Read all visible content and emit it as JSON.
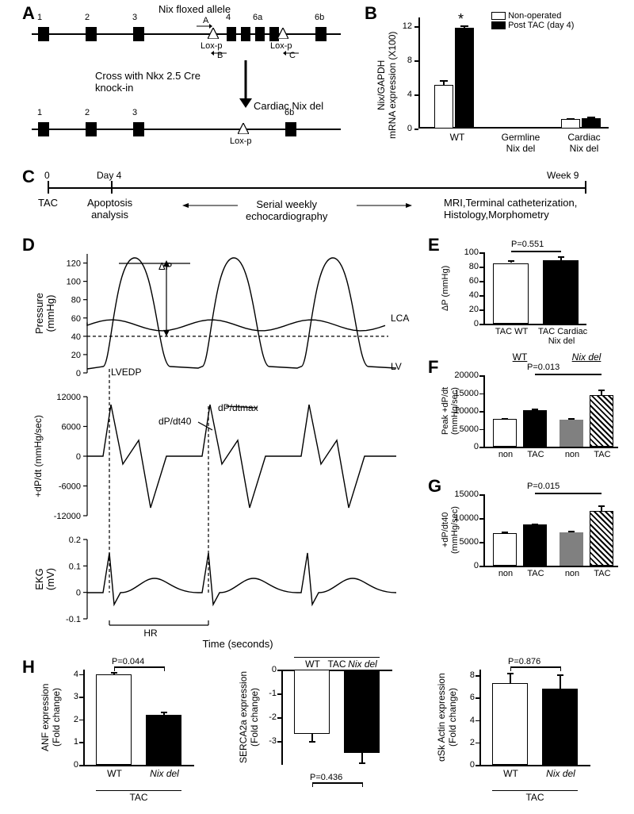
{
  "panelLabels": {
    "A": "A",
    "B": "B",
    "C": "C",
    "D": "D",
    "E": "E",
    "F": "F",
    "G": "G",
    "H": "H"
  },
  "panelA": {
    "title": "Nix floxed allele",
    "exons_top": [
      "1",
      "2",
      "3",
      "4",
      "6a",
      "6b"
    ],
    "loxp": "Lox-p",
    "primers": [
      "A",
      "B",
      "C"
    ],
    "cross_text": "Cross with Nkx 2.5 Cre\nknock-in",
    "bottom_title": "Cardiac Nix del",
    "exons_bottom": [
      "1",
      "2",
      "3",
      "6b"
    ]
  },
  "panelB": {
    "ylabel": "Nix/GAPDH\nmRNA expression (X100)",
    "yticks": [
      0,
      4,
      8,
      12
    ],
    "legend": [
      "Non-operated",
      "Post TAC (day 4)"
    ],
    "groups": [
      "WT",
      "Germline\nNix del",
      "Cardiac\nNix del"
    ],
    "values_non": [
      5.1,
      0.1,
      1.1
    ],
    "values_tac": [
      11.8,
      0.1,
      1.2
    ],
    "err_non": [
      0.6,
      0.05,
      0.15
    ],
    "err_tac": [
      0.3,
      0.05,
      0.15
    ],
    "star": "*",
    "bar_colors": {
      "non": "#ffffff",
      "tac": "#000000"
    },
    "ylim": [
      0,
      13
    ]
  },
  "panelC": {
    "marks": [
      "0",
      "Day 4",
      "Week 9"
    ],
    "labels": [
      "TAC",
      "Apoptosis\nanalysis",
      "Serial weekly\nechocardiography",
      "MRI,Terminal catheterization,\nHistology,Morphometry"
    ]
  },
  "panelD": {
    "pressure": {
      "ylabel": "Pressure\n(mmHg)",
      "yticks": [
        0,
        20,
        40,
        60,
        80,
        100,
        120
      ],
      "annot": [
        "ΔP",
        "LVEDP",
        "LCA",
        "LV"
      ]
    },
    "dpdt": {
      "ylabel": "+dP/dt (mmHg/sec)",
      "yticks": [
        -12000,
        -6000,
        0,
        6000,
        12000
      ],
      "annot": [
        "dP/dt40",
        "dP/dtmax"
      ]
    },
    "ekg": {
      "ylabel": "EKG\n(mV)",
      "yticks": [
        -0.1,
        0,
        0.1,
        0.2
      ],
      "annot": [
        "HR"
      ]
    },
    "xlabel": "Time (seconds)"
  },
  "panelE": {
    "ylabel": "ΔP (mmHg)",
    "yticks": [
      0,
      20,
      40,
      60,
      80,
      100
    ],
    "groups": [
      "TAC WT",
      "TAC Cardiac\nNix del"
    ],
    "values": [
      85,
      89
    ],
    "err": [
      4,
      5
    ],
    "pvalue": "P=0.551",
    "colors": [
      "#ffffff",
      "#000000"
    ],
    "ylim": [
      0,
      100
    ]
  },
  "panelF": {
    "ylabel": "Peak +dP/dt\n(mmHg/sec)",
    "yticks": [
      0,
      5000,
      10000,
      15000,
      20000
    ],
    "header": [
      "WT",
      "Nix del"
    ],
    "groups": [
      "non",
      "TAC",
      "non",
      "TAC"
    ],
    "values": [
      7700,
      10300,
      7600,
      14500
    ],
    "err": [
      400,
      400,
      400,
      1500
    ],
    "pvalue": "P=0.013",
    "colors": [
      "#ffffff",
      "#000000",
      "#808080",
      "hatched"
    ],
    "ylim": [
      0,
      20000
    ]
  },
  "panelG": {
    "ylabel": "+dP/dt40\n(mmHg/sec)",
    "yticks": [
      0,
      5000,
      10000,
      15000
    ],
    "header": [
      "",
      ""
    ],
    "groups": [
      "non",
      "TAC",
      "non",
      "TAC"
    ],
    "values": [
      6800,
      8600,
      7000,
      11500
    ],
    "err": [
      300,
      300,
      400,
      1200
    ],
    "pvalue": "P=0.015",
    "colors": [
      "#ffffff",
      "#000000",
      "#808080",
      "hatched"
    ],
    "ylim": [
      0,
      15000
    ]
  },
  "panelH": {
    "charts": [
      {
        "ylabel": "ANF expression\n(Fold change)",
        "yticks": [
          0,
          1,
          2,
          3,
          4
        ],
        "groups": [
          "WT",
          "Nix del"
        ],
        "values": [
          4.0,
          2.2
        ],
        "err": [
          0.1,
          0.15
        ],
        "pvalue": "P=0.044",
        "ylim": [
          0,
          4.2
        ],
        "xlabel": "TAC",
        "colors": [
          "#ffffff",
          "#000000"
        ]
      },
      {
        "ylabel": "SERCA2a expression\n(Fold change)",
        "yticks": [
          0,
          -1,
          -2,
          -3
        ],
        "groups": [
          "WT",
          "Nix del"
        ],
        "values": [
          -2.7,
          -3.5
        ],
        "err": [
          0.3,
          0.4
        ],
        "pvalue": "P=0.436",
        "ylim": [
          -4,
          0
        ],
        "xlabel": "TAC",
        "inverted": true,
        "colors": [
          "#ffffff",
          "#000000"
        ]
      },
      {
        "ylabel": "αSk Actin expression\n(Fold change)",
        "yticks": [
          0,
          2,
          4,
          6,
          8
        ],
        "groups": [
          "WT",
          "Nix del"
        ],
        "values": [
          7.3,
          6.8
        ],
        "err": [
          0.9,
          1.3
        ],
        "pvalue": "P=0.876",
        "ylim": [
          0,
          8.5
        ],
        "xlabel": "TAC",
        "colors": [
          "#ffffff",
          "#000000"
        ]
      }
    ]
  },
  "style": {
    "bg": "#ffffff",
    "fg": "#000000",
    "font": "Arial",
    "panel_label_fs": 22,
    "axis_fs": 13,
    "tick_fs": 11
  }
}
